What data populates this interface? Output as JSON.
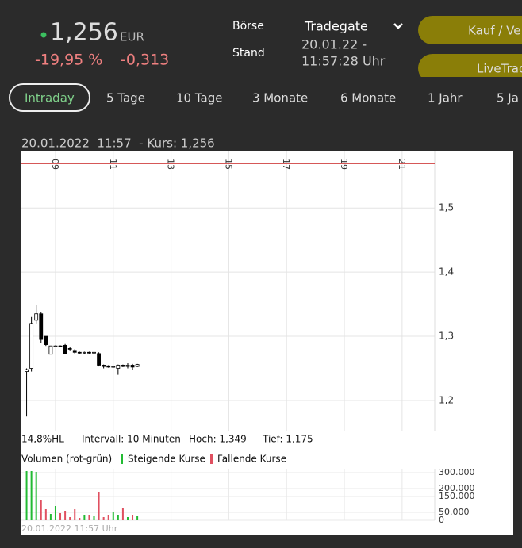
{
  "header": {
    "price": "1,256",
    "currency": "EUR",
    "change_pct": "-19,95 %",
    "change_abs": "-0,313",
    "exchange_label": "Börse",
    "exchange": "Tradegate",
    "stand_label": "Stand",
    "date": "20.01.22 -",
    "time": "11:57:28 Uhr",
    "buttons": [
      "Kauf / Ve",
      "LiveTrad"
    ]
  },
  "tabs": [
    "Intraday",
    "5 Tage",
    "10 Tage",
    "3 Monate",
    "6 Monate",
    "1 Jahr",
    "5 Ja"
  ],
  "caption": "20.01.2022  11:57  - Kurs: 1,256",
  "stats": [
    "14,8%HL",
    "Intervall: 10 Minuten",
    "Hoch: 1,349",
    "Tief: 1,175"
  ],
  "volume_legend": {
    "title": "Volumen (rot-grün)",
    "up": "Steigende Kurse",
    "down": "Fallende Kurse"
  },
  "watermark": "20.01.2022 11:57 Uhr",
  "chart_data": [
    {
      "type": "candlestick",
      "x": [
        8,
        8.1667,
        8.3333,
        8.5,
        8.6667,
        8.8333,
        9,
        9.1667,
        9.3333,
        9.5,
        9.6667,
        9.8333,
        10,
        10.1667,
        10.3333,
        10.5,
        10.6667,
        10.8333,
        11,
        11.1667,
        11.3333,
        11.5,
        11.6667,
        11.8333
      ],
      "open": [
        1.245,
        1.25,
        1.325,
        1.335,
        1.3,
        1.272,
        1.284,
        1.285,
        1.286,
        1.281,
        1.278,
        1.275,
        1.274,
        1.275,
        1.274,
        1.273,
        1.255,
        1.254,
        1.252,
        1.25,
        1.255,
        1.253,
        1.255,
        1.253
      ],
      "high": [
        1.25,
        1.33,
        1.349,
        1.338,
        1.3,
        1.285,
        1.286,
        1.286,
        1.288,
        1.283,
        1.28,
        1.276,
        1.276,
        1.276,
        1.276,
        1.275,
        1.256,
        1.255,
        1.254,
        1.256,
        1.256,
        1.258,
        1.257,
        1.257
      ],
      "low": [
        1.175,
        1.245,
        1.32,
        1.29,
        1.285,
        1.272,
        1.283,
        1.283,
        1.272,
        1.278,
        1.273,
        1.273,
        1.273,
        1.273,
        1.273,
        1.253,
        1.25,
        1.251,
        1.251,
        1.24,
        1.252,
        1.25,
        1.248,
        1.252
      ],
      "close": [
        1.248,
        1.32,
        1.335,
        1.295,
        1.287,
        1.285,
        1.285,
        1.284,
        1.273,
        1.28,
        1.275,
        1.274,
        1.275,
        1.274,
        1.275,
        1.255,
        1.253,
        1.252,
        1.253,
        1.255,
        1.253,
        1.255,
        1.252,
        1.256
      ],
      "up_color": "#ffffff",
      "down_color": "#000000",
      "reference_line": 1.569,
      "reference_color": "#d04040",
      "xlim": [
        7.82,
        22.13
      ],
      "xticks": [
        {
          "value": 9,
          "label": "09"
        },
        11,
        13,
        15,
        17,
        19,
        21
      ],
      "ylim": [
        1.153,
        1.588
      ],
      "yticks": [
        {
          "value": 1.2,
          "label": "1,2"
        },
        {
          "value": 1.3,
          "label": "1,3"
        },
        {
          "value": 1.4,
          "label": "1,4"
        },
        {
          "value": 1.5,
          "label": "1,5"
        }
      ],
      "grid": true
    },
    {
      "type": "bar",
      "x": [
        8,
        8.1667,
        8.3333,
        8.5,
        8.6667,
        8.8333,
        9,
        9.1667,
        9.3333,
        9.5,
        9.6667,
        9.8333,
        10,
        10.1667,
        10.3333,
        10.5,
        10.6667,
        10.8333,
        11,
        11.1667,
        11.3333,
        11.5,
        11.6667,
        11.8333
      ],
      "values": [
        310000,
        310000,
        305000,
        130000,
        70000,
        40000,
        90000,
        45000,
        60000,
        20000,
        70000,
        15000,
        30000,
        30000,
        25000,
        180000,
        20000,
        35000,
        50000,
        35000,
        80000,
        20000,
        35000,
        25000
      ],
      "colors": [
        "#22bb33",
        "#22bb33",
        "#22bb33",
        "#e05060",
        "#e05060",
        "#22bb33",
        "#22bb33",
        "#e05060",
        "#e05060",
        "#e05060",
        "#e05060",
        "#e05060",
        "#22bb33",
        "#e05060",
        "#22bb33",
        "#e05060",
        "#e05060",
        "#e05060",
        "#22bb33",
        "#22bb33",
        "#e05060",
        "#22bb33",
        "#e05060",
        "#22bb33"
      ],
      "xlim": [
        7.82,
        22.13
      ],
      "ylim": [
        0,
        320000
      ],
      "yticks": [
        0,
        {
          "value": 50000,
          "label": "50.000"
        },
        {
          "value": 150000,
          "label": "150.000"
        },
        {
          "value": 200000,
          "label": "200.000"
        },
        {
          "value": 300000,
          "label": "300.000"
        }
      ],
      "grid": true
    }
  ]
}
